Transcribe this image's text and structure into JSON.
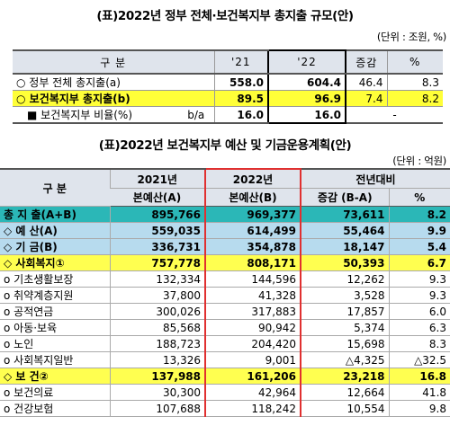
{
  "title1": "(표)2022년 정부 전체·보건복지부 총지출 규모(안)",
  "unit1": "(단위 : 조원, %)",
  "table1": {
    "headers": [
      "구 분",
      "'21",
      "'22",
      "증감",
      "%"
    ],
    "rows": [
      {
        "label": "○ 정부 전체 총지출(a)",
        "v21": "558.0",
        "v22": "604.4",
        "diff": "46.4",
        "pct": "8.3"
      },
      {
        "label": "○ 보건복지부 총지출(b)",
        "v21": "89.5",
        "v22": "96.9",
        "diff": "7.4",
        "pct": "8.2"
      }
    ],
    "ratio": {
      "label": "■ 보건복지부 비율(%)",
      "formula": "b/a",
      "v21": "16.0",
      "v22": "16.0",
      "diff": "-"
    }
  },
  "title2": "(표)2022년 보건복지부 예산 및 기금운용계획(안)",
  "unit2": "(단위 : 억원)",
  "table2": {
    "header_category": "구 분",
    "header_2021_year": "2021년",
    "header_2021_sub": "본예산(A)",
    "header_2022_year": "2022년",
    "header_2022_sub": "본예산(B)",
    "header_compare": "전년대비",
    "header_diff": "증감 (B-A)",
    "header_pct": "%",
    "rows": [
      {
        "label": "총 지 출(A+B)",
        "a": "895,766",
        "b": "969,377",
        "diff": "73,611",
        "pct": "8.2"
      },
      {
        "label": "◇ 예 산(A)",
        "a": "559,035",
        "b": "614,499",
        "diff": "55,464",
        "pct": "9.9"
      },
      {
        "label": "◇ 기 금(B)",
        "a": "336,731",
        "b": "354,878",
        "diff": "18,147",
        "pct": "5.4"
      },
      {
        "label": "◇ 사회복지①",
        "a": "757,778",
        "b": "808,171",
        "diff": "50,393",
        "pct": "6.7"
      },
      {
        "label": "o 기초생활보장",
        "a": "132,334",
        "b": "144,596",
        "diff": "12,262",
        "pct": "9.3"
      },
      {
        "label": "o 취약계층지원",
        "a": "37,800",
        "b": "41,328",
        "diff": "3,528",
        "pct": "9.3"
      },
      {
        "label": "o 공적연금",
        "a": "300,026",
        "b": "317,883",
        "diff": "17,857",
        "pct": "6.0"
      },
      {
        "label": "o 아동·보육",
        "a": "85,568",
        "b": "90,942",
        "diff": "5,374",
        "pct": "6.3"
      },
      {
        "label": "o 노인",
        "a": "188,723",
        "b": "204,420",
        "diff": "15,698",
        "pct": "8.3"
      },
      {
        "label": "o 사회복지일반",
        "a": "13,326",
        "b": "9,001",
        "diff": "△4,325",
        "pct": "△32.5"
      },
      {
        "label": "◇ 보 건②",
        "a": "137,988",
        "b": "161,206",
        "diff": "23,218",
        "pct": "16.8"
      },
      {
        "label": "o 보건의료",
        "a": "30,300",
        "b": "42,964",
        "diff": "12,664",
        "pct": "41.8"
      },
      {
        "label": "o 건강보험",
        "a": "107,688",
        "b": "118,242",
        "diff": "10,554",
        "pct": "9.8"
      }
    ]
  },
  "colors": {
    "header_bg": "#dfe4ec",
    "highlight_yellow": "#ffff38",
    "total_teal": "#2bb7b7",
    "sub_blue": "#b7dbee",
    "red_box": "#e03030"
  }
}
